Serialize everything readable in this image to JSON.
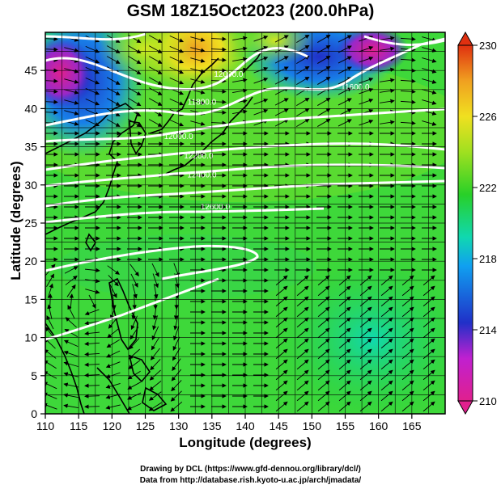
{
  "title": "GSM 18Z15Oct2023 (200.0hPa)",
  "xlabel": "Longitude (degrees)",
  "ylabel": "Latitude  (degrees)",
  "credits": {
    "line1": "Drawing by DCL (https://www.gfd-dennou.org/library/dcl/)",
    "line2": "Data from http://database.rish.kyoto-u.ac.jp/arch/jmadata/"
  },
  "map": {
    "lon_range": [
      110,
      170
    ],
    "lat_range": [
      0,
      50
    ],
    "lon_ticks": [
      "110",
      "115",
      "120",
      "125",
      "130",
      "135",
      "140",
      "145",
      "150",
      "155",
      "160",
      "165"
    ],
    "lat_ticks": [
      "0",
      "5",
      "10",
      "15",
      "20",
      "25",
      "30",
      "35",
      "40",
      "45"
    ],
    "grid": true
  },
  "colorbar": {
    "ticks": [
      "210",
      "214",
      "218",
      "222",
      "226",
      "230"
    ],
    "range": [
      210,
      230
    ],
    "colors": [
      "#e0208e",
      "#c020d0",
      "#2030c8",
      "#10a0f0",
      "#10d8b0",
      "#28d028",
      "#a0e020",
      "#f0e020",
      "#f0a020",
      "#e03010"
    ]
  },
  "contours": [
    {
      "label": "12000.0",
      "lon": 137.5,
      "lat": 44.2
    },
    {
      "label": "11800.0",
      "lon": 133.5,
      "lat": 40.5
    },
    {
      "label": "11600.0",
      "lon": 156.5,
      "lat": 42.5
    },
    {
      "label": "12000.0",
      "lon": 130.0,
      "lat": 36.0
    },
    {
      "label": "12200.0",
      "lon": 133.0,
      "lat": 33.5
    },
    {
      "label": "12400.0",
      "lon": 133.5,
      "lat": 31.0
    },
    {
      "label": "12600.0",
      "lon": 135.5,
      "lat": 26.8
    }
  ]
}
